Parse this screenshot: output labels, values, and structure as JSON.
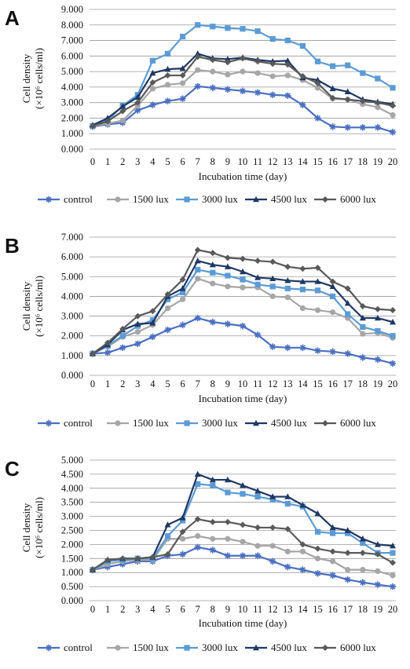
{
  "chart_data": [
    {
      "panel": "A",
      "type": "line",
      "xlabel": "Incubation time (day)",
      "ylabel_line1": "Cell density",
      "ylabel_line2": "(×10⁶ cells/ml)",
      "ylim": [
        0,
        9
      ],
      "yticks": [
        "0.000",
        "1.000",
        "2.000",
        "3.000",
        "4.000",
        "5.000",
        "6.000",
        "7.000",
        "8.000",
        "9.000"
      ],
      "grid": true,
      "legend_position": "bottom",
      "x": [
        0,
        1,
        2,
        3,
        4,
        5,
        6,
        7,
        8,
        9,
        10,
        11,
        12,
        13,
        14,
        15,
        16,
        17,
        18,
        19,
        20
      ],
      "series": [
        {
          "name": "control",
          "color": "#4a6fc2",
          "marker": "star",
          "values": [
            1.45,
            1.6,
            1.7,
            2.5,
            2.85,
            3.1,
            3.25,
            4.05,
            3.95,
            3.85,
            3.75,
            3.65,
            3.5,
            3.45,
            2.85,
            2.0,
            1.45,
            1.4,
            1.4,
            1.4,
            1.1
          ]
        },
        {
          "name": "1500 lux",
          "color": "#a6a6a6",
          "marker": "circle",
          "values": [
            1.5,
            1.65,
            1.85,
            2.8,
            3.9,
            4.15,
            4.25,
            5.1,
            5.0,
            4.8,
            5.0,
            4.9,
            4.7,
            4.75,
            4.45,
            3.95,
            3.25,
            3.2,
            2.9,
            2.7,
            2.2
          ]
        },
        {
          "name": "3000 lux",
          "color": "#5b9bd5",
          "marker": "square",
          "values": [
            1.5,
            1.85,
            2.8,
            3.5,
            5.7,
            6.15,
            7.25,
            8.0,
            7.9,
            7.8,
            7.75,
            7.6,
            7.1,
            7.0,
            6.65,
            5.65,
            5.35,
            5.4,
            4.9,
            4.55,
            3.95
          ]
        },
        {
          "name": "4500 lux",
          "color": "#1f3864",
          "marker": "triangle",
          "values": [
            1.55,
            2.0,
            2.75,
            3.35,
            4.9,
            5.15,
            5.2,
            6.15,
            5.85,
            5.8,
            5.9,
            5.75,
            5.65,
            5.7,
            4.6,
            4.45,
            3.9,
            3.7,
            3.2,
            3.05,
            2.9
          ]
        },
        {
          "name": "6000 lux",
          "color": "#595959",
          "marker": "diamond",
          "values": [
            1.5,
            1.8,
            2.45,
            3.0,
            4.3,
            4.75,
            4.75,
            5.95,
            5.75,
            5.6,
            5.85,
            5.65,
            5.5,
            5.45,
            4.7,
            4.25,
            3.3,
            3.2,
            3.1,
            3.0,
            2.8
          ]
        }
      ]
    },
    {
      "panel": "B",
      "type": "line",
      "xlabel": "Incubation time (day)",
      "ylabel_line1": "Cell density",
      "ylabel_line2": "(×10⁶ cells/ml)",
      "ylim": [
        0,
        7
      ],
      "yticks": [
        "0.000",
        "1.000",
        "2.000",
        "3.000",
        "4.000",
        "5.000",
        "6.000",
        "7.000"
      ],
      "grid": true,
      "legend_position": "bottom",
      "x": [
        0,
        1,
        2,
        3,
        4,
        5,
        6,
        7,
        8,
        9,
        10,
        11,
        12,
        13,
        14,
        15,
        16,
        17,
        18,
        19,
        20
      ],
      "series": [
        {
          "name": "control",
          "color": "#4a6fc2",
          "marker": "star",
          "values": [
            1.1,
            1.15,
            1.4,
            1.6,
            1.95,
            2.3,
            2.55,
            2.9,
            2.7,
            2.6,
            2.5,
            2.05,
            1.45,
            1.4,
            1.4,
            1.25,
            1.2,
            1.1,
            0.9,
            0.8,
            0.6
          ]
        },
        {
          "name": "1500 lux",
          "color": "#a6a6a6",
          "marker": "circle",
          "values": [
            1.1,
            1.45,
            1.95,
            2.2,
            2.55,
            3.4,
            3.85,
            4.9,
            4.65,
            4.5,
            4.45,
            4.45,
            4.0,
            3.95,
            3.4,
            3.3,
            3.2,
            2.9,
            2.1,
            2.15,
            1.9
          ]
        },
        {
          "name": "3000 lux",
          "color": "#5b9bd5",
          "marker": "square",
          "values": [
            1.1,
            1.5,
            2.0,
            2.5,
            2.8,
            3.85,
            4.2,
            5.35,
            5.2,
            5.05,
            4.85,
            4.6,
            4.5,
            4.4,
            4.35,
            4.3,
            4.0,
            3.1,
            2.45,
            2.25,
            2.0
          ]
        },
        {
          "name": "4500 lux",
          "color": "#1f3864",
          "marker": "triangle",
          "values": [
            1.1,
            1.55,
            2.3,
            2.6,
            2.65,
            4.0,
            4.4,
            5.8,
            5.6,
            5.5,
            5.25,
            4.95,
            4.9,
            4.8,
            4.75,
            4.75,
            4.5,
            3.65,
            2.9,
            2.9,
            2.7
          ]
        },
        {
          "name": "6000 lux",
          "color": "#595959",
          "marker": "diamond",
          "values": [
            1.1,
            1.65,
            2.35,
            3.0,
            3.25,
            4.1,
            4.85,
            6.35,
            6.2,
            5.95,
            5.9,
            5.8,
            5.75,
            5.5,
            5.4,
            5.45,
            4.75,
            4.4,
            3.5,
            3.35,
            3.3
          ]
        }
      ]
    },
    {
      "panel": "C",
      "type": "line",
      "xlabel": "Incubation time (day)",
      "ylabel_line1": "Cell density",
      "ylabel_line2": "(×10⁶ cells/ml)",
      "ylim": [
        0,
        5
      ],
      "yticks": [
        "0.000",
        "0.500",
        "1.000",
        "1.500",
        "2.000",
        "2.500",
        "3.000",
        "3.500",
        "4.000",
        "4.500",
        "5.000"
      ],
      "grid": true,
      "legend_position": "bottom",
      "x": [
        0,
        1,
        2,
        3,
        4,
        5,
        6,
        7,
        8,
        9,
        10,
        11,
        12,
        13,
        14,
        15,
        16,
        17,
        18,
        19,
        20
      ],
      "series": [
        {
          "name": "control",
          "color": "#4a6fc2",
          "marker": "star",
          "values": [
            1.1,
            1.2,
            1.3,
            1.4,
            1.4,
            1.6,
            1.65,
            1.9,
            1.8,
            1.6,
            1.6,
            1.6,
            1.4,
            1.2,
            1.1,
            0.97,
            0.9,
            0.75,
            0.65,
            0.57,
            0.5
          ]
        },
        {
          "name": "1500 lux",
          "color": "#a6a6a6",
          "marker": "circle",
          "values": [
            1.1,
            1.3,
            1.4,
            1.45,
            1.45,
            2.2,
            2.2,
            2.3,
            2.2,
            2.2,
            2.1,
            1.95,
            1.95,
            1.75,
            1.75,
            1.5,
            1.4,
            1.1,
            1.1,
            1.05,
            0.9
          ]
        },
        {
          "name": "3000 lux",
          "color": "#5b9bd5",
          "marker": "square",
          "values": [
            1.1,
            1.4,
            1.45,
            1.5,
            1.5,
            2.3,
            2.85,
            4.15,
            4.1,
            3.85,
            3.8,
            3.7,
            3.6,
            3.45,
            3.35,
            2.45,
            2.4,
            2.4,
            2.05,
            1.7,
            1.7
          ]
        },
        {
          "name": "4500 lux",
          "color": "#1f3864",
          "marker": "triangle",
          "values": [
            1.1,
            1.45,
            1.5,
            1.5,
            1.55,
            2.7,
            2.95,
            4.5,
            4.3,
            4.3,
            4.1,
            3.9,
            3.7,
            3.7,
            3.4,
            3.1,
            2.6,
            2.5,
            2.2,
            2.0,
            1.95
          ]
        },
        {
          "name": "6000 lux",
          "color": "#595959",
          "marker": "diamond",
          "values": [
            1.1,
            1.45,
            1.5,
            1.5,
            1.55,
            1.65,
            2.45,
            2.9,
            2.8,
            2.8,
            2.7,
            2.6,
            2.6,
            2.55,
            2.0,
            1.85,
            1.75,
            1.7,
            1.7,
            1.65,
            1.35
          ]
        }
      ]
    }
  ]
}
